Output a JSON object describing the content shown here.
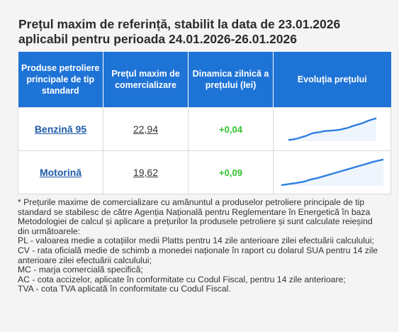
{
  "title_line1": "Prețul maxim de referință, stabilit la data de 23.01.2026",
  "title_line2": "aplicabil pentru perioada 24.01.2026-26.01.2026",
  "table": {
    "headers": [
      "Produse petroliere principale de tip standard",
      "Prețul maxim de comercializare",
      "Dinamica zilnică a prețului (lei)",
      "Evoluția prețului"
    ],
    "rows": [
      {
        "product": "Benzină 95",
        "price": "22,94",
        "change": "+0,04",
        "trend": [
          0.05,
          0.07,
          0.1,
          0.15,
          0.2,
          0.26,
          0.33,
          0.36,
          0.38,
          0.42,
          0.43,
          0.44,
          0.46,
          0.48,
          0.52,
          0.56,
          0.62,
          0.67,
          0.72,
          0.78,
          0.85,
          0.9,
          0.95
        ]
      },
      {
        "product": "Motorină",
        "price": "19,62",
        "change": "+0,09",
        "trend": [
          0.03,
          0.05,
          0.08,
          0.1,
          0.13,
          0.16,
          0.22,
          0.26,
          0.3,
          0.35,
          0.4,
          0.45,
          0.5,
          0.55,
          0.6,
          0.65,
          0.7,
          0.75,
          0.8,
          0.85,
          0.9,
          0.94,
          0.98
        ]
      }
    ],
    "trend_color": "#2f7fe0",
    "header_color": "#1e73d6",
    "change_color": "#2ec02e"
  },
  "notes": [
    "* Prețurile maxime de comercializare cu amănuntul a produselor petroliere principale de tip standard se stabilesc de către Agenția Națională pentru Reglementare în Energetică în baza Metodologiei de calcul și aplicare a prețurilor la produsele petroliere și sunt calculate reieșind din următoarele:",
    "PL - valoarea medie a cotațiilor medii Platts pentru 14 zile anterioare zilei efectuării calculului;",
    "CV - rata oficială medie de schimb a monedei naționale în raport cu dolarul SUA pentru 14 zile anterioare zilei efectuării calculului;",
    "MC - marja comercială specifică;",
    "AC - cota accizelor, aplicate în conformitate cu Codul Fiscal, pentru 14 zile anterioare;",
    "TVA - cota TVA aplicată în conformitate cu Codul Fiscal."
  ]
}
